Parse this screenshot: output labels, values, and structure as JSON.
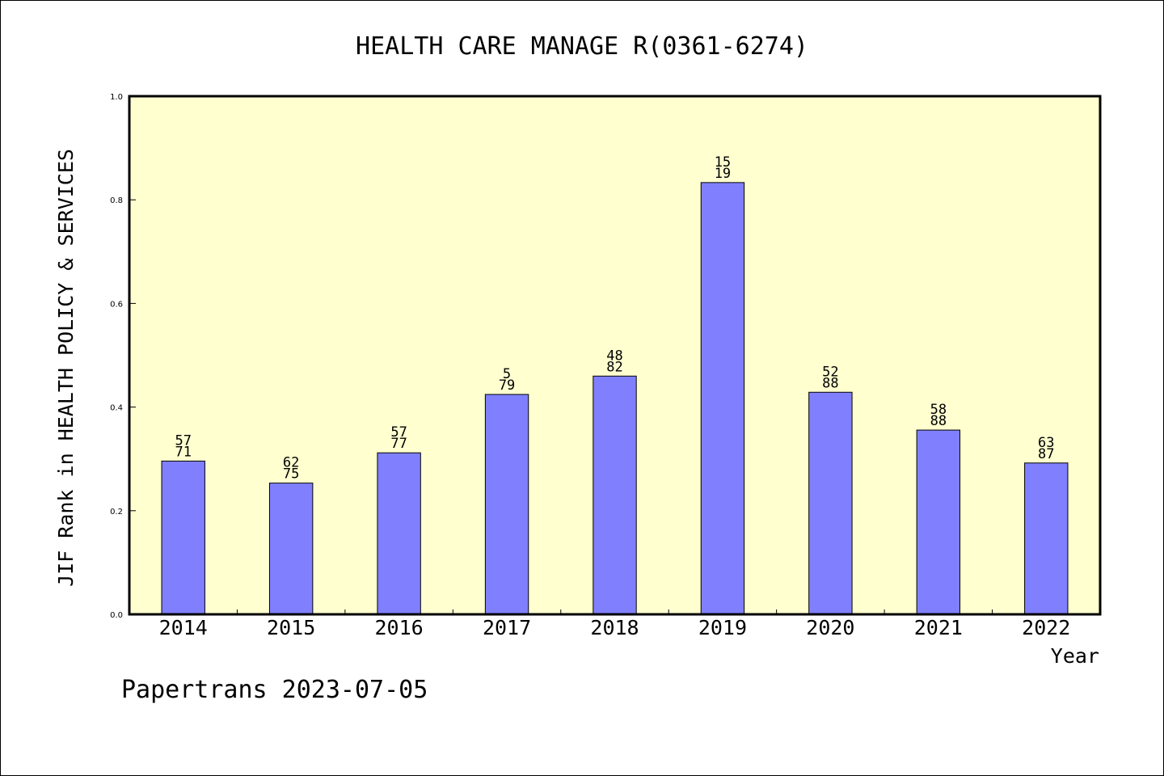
{
  "chart_data": {
    "type": "bar",
    "title": "HEALTH CARE MANAGE R(0361-6274)",
    "xlabel": "Year",
    "ylabel": "JIF Rank in HEALTH POLICY & SERVICES",
    "ylim": [
      0,
      1.0
    ],
    "yticks": [
      "0.0",
      "0.2",
      "0.4",
      "0.6",
      "0.8",
      "1.0"
    ],
    "categories": [
      "2014",
      "2015",
      "2016",
      "2017",
      "2018",
      "2019",
      "2020",
      "2021",
      "2022"
    ],
    "values": [
      0.2958,
      0.2533,
      0.3117,
      0.4244,
      0.4598,
      0.8333,
      0.4286,
      0.3556,
      0.2921
    ],
    "labels": [
      {
        "top": "57",
        "bottom": "71"
      },
      {
        "top": "62",
        "bottom": "75"
      },
      {
        "top": "57",
        "bottom": "77"
      },
      {
        "top": "5",
        "bottom": "79"
      },
      {
        "top": "48",
        "bottom": "82"
      },
      {
        "top": "15",
        "bottom": "19"
      },
      {
        "top": "52",
        "bottom": "88"
      },
      {
        "top": "58",
        "bottom": "88"
      },
      {
        "top": "63",
        "bottom": "87"
      }
    ],
    "grid": false,
    "colors": {
      "bar": "#8080ff",
      "plot_bg": "#ffffd0",
      "frame": "#000000"
    }
  },
  "footer": "Papertrans 2023-07-05"
}
